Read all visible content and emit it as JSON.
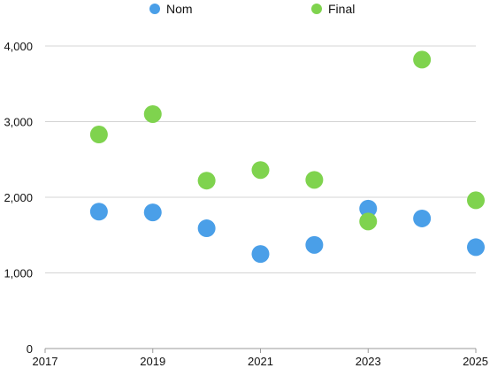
{
  "chart_data": {
    "type": "scatter",
    "title": "",
    "xlabel": "",
    "ylabel": "",
    "xlim": [
      2017,
      2025
    ],
    "ylim": [
      0,
      4000
    ],
    "x_ticks": [
      "2017",
      "2019",
      "2021",
      "2023",
      "2025"
    ],
    "y_ticks": [
      "0",
      "1,000",
      "2,000",
      "3,000",
      "4,000"
    ],
    "grid": "horizontal",
    "legend_position": "top",
    "series": [
      {
        "name": "Nom",
        "color": "#4a9fe8",
        "x": [
          2018,
          2019,
          2020,
          2021,
          2022,
          2023,
          2024,
          2025
        ],
        "y": [
          1810,
          1800,
          1590,
          1250,
          1370,
          1850,
          1720,
          1340
        ]
      },
      {
        "name": "Final",
        "color": "#7fd34e",
        "x": [
          2018,
          2019,
          2020,
          2021,
          2022,
          2023,
          2024,
          2025
        ],
        "y": [
          2830,
          3100,
          2220,
          2360,
          2230,
          1680,
          3820,
          1960
        ]
      }
    ]
  }
}
